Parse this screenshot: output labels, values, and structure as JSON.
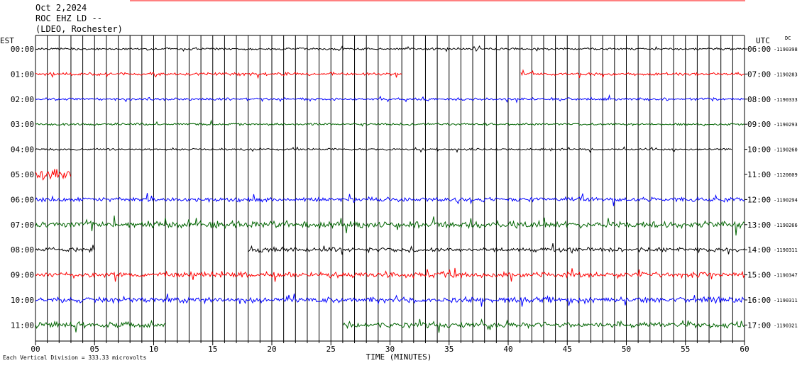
{
  "header": {
    "date": "Oct 2,2024",
    "station": "ROC EHZ LD --",
    "network": "(LDEO, Rochester)"
  },
  "footer": {
    "scale_note": "Each Vertical Division = 333.33 microvolts"
  },
  "chart_data": {
    "type": "line",
    "title": "",
    "xlabel": "TIME (MINUTES)",
    "ylabel_left": "EST",
    "ylabel_right": "UTC",
    "dc_header": "DC",
    "xlim": [
      0,
      60
    ],
    "x_ticks": [
      "00",
      "05",
      "10",
      "15",
      "20",
      "25",
      "30",
      "35",
      "40",
      "45",
      "50",
      "55",
      "60"
    ],
    "grid": "vertical lines every minute",
    "colors": [
      "#000000",
      "#ff0000",
      "#0000ff",
      "#006400"
    ],
    "series": [
      {
        "est": "00:00",
        "utc": "06:00",
        "dc": "-1190398",
        "color": "#000000",
        "start": 0,
        "end": 60,
        "level": 0.6
      },
      {
        "est": "01:00",
        "utc": "07:00",
        "dc": "-1190283",
        "color": "#ff0000",
        "start": 0,
        "end": 60,
        "level": 0.8,
        "gap": [
          31,
          41
        ]
      },
      {
        "est": "02:00",
        "utc": "08:00",
        "dc": "-1190333",
        "color": "#0000ff",
        "start": 0,
        "end": 60,
        "level": 0.7
      },
      {
        "est": "03:00",
        "utc": "09:00",
        "dc": "-1190293",
        "color": "#006400",
        "start": 0,
        "end": 60,
        "level": 0.6
      },
      {
        "est": "04:00",
        "utc": "10:00",
        "dc": "-1190260",
        "color": "#000000",
        "start": 0,
        "end": 59,
        "level": 0.5
      },
      {
        "est": "05:00",
        "utc": "11:00",
        "dc": "-1120609",
        "color": "#ff0000",
        "start": 0,
        "end": 3,
        "level": 4.0
      },
      {
        "est": "06:00",
        "utc": "12:00",
        "dc": "-1190294",
        "color": "#0000ff",
        "start": 0,
        "end": 60,
        "level": 1.2
      },
      {
        "est": "07:00",
        "utc": "13:00",
        "dc": "-1190266",
        "color": "#006400",
        "start": 0,
        "end": 60,
        "level": 1.8
      },
      {
        "est": "08:00",
        "utc": "14:00",
        "dc": "-1190311",
        "color": "#000000",
        "start": 0,
        "end": 60,
        "level": 1.2,
        "gap": [
          5,
          18
        ]
      },
      {
        "est": "09:00",
        "utc": "15:00",
        "dc": "-1190347",
        "color": "#ff0000",
        "start": 0,
        "end": 60,
        "level": 1.5
      },
      {
        "est": "10:00",
        "utc": "16:00",
        "dc": "-1190311",
        "color": "#0000ff",
        "start": 0,
        "end": 60,
        "level": 1.5
      },
      {
        "est": "11:00",
        "utc": "17:00",
        "dc": "-1190321",
        "color": "#006400",
        "start": 0,
        "end": 60,
        "level": 1.6,
        "gap": [
          11,
          26
        ]
      }
    ]
  }
}
